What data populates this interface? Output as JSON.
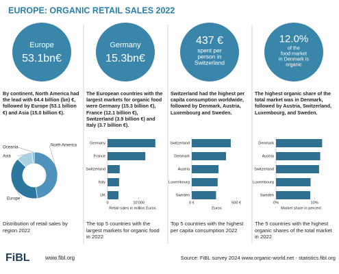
{
  "title": "EUROPE: ORGANIC RETAIL SALES 2022",
  "panels": [
    {
      "badge": [
        "Europe",
        "53.1bn€"
      ],
      "text": "By continent, North America had the lead with 64.4 billion (bn) €, followed by Europe (53.1 billion €) and Asia (15.0 billion €).",
      "caption": "Distribution of retail sales by region 2022"
    },
    {
      "badge": [
        "Germany",
        "15.3bn€"
      ],
      "text": "The European countries with the largest markets for organic food were Germany (15.3 billion €), France (12.1 billion €), Switzerland (3.9 billion €) and Italy (3.7 billion €).",
      "caption": "The top 5 countries with the largest markets for organic food in 2022"
    },
    {
      "badge": [
        "437 €",
        "spent per",
        "person in",
        "Switzerland"
      ],
      "text": "Switzerland had the highest per capita consumption worldwide, followed by Denmark, Austria, Luxembourg and Sweden.",
      "caption": "Top 5 countries with the highest per capita consumption 2022"
    },
    {
      "badge": [
        "12.0%",
        "of the",
        "food market",
        "in Denmark is",
        "organic"
      ],
      "text": "The highest organic share of the total market was in Denmark, followed by Austria, Switzerland, Luxembourg, and Sweden.",
      "caption": "The 5 countries with the highest organic shares of the total market in 2022"
    }
  ],
  "chart_data": [
    {
      "type": "donut",
      "categories": [
        "North America",
        "Europe",
        "Asia",
        "Oceania"
      ],
      "values": [
        64.4,
        53.1,
        15.0,
        2.0
      ],
      "colors": [
        "#4f93bd",
        "#2a77a0",
        "#a9d1e2",
        "#74b3cf"
      ]
    },
    {
      "type": "hbar",
      "categories": [
        "Germany",
        "France",
        "Switzerland",
        "Italy",
        "UK"
      ],
      "values": [
        15300,
        12100,
        3900,
        3700,
        3500
      ],
      "xlim": [
        0,
        16000
      ],
      "xticks": [
        0,
        {
          "value": 10000,
          "label": "10'000"
        }
      ],
      "xlabel": "Retail sales in million Euros",
      "color": "#2f6f8f"
    },
    {
      "type": "hbar",
      "categories": [
        "Switzerland",
        "Denmark",
        "Austria",
        "Luxembourg",
        "Sweden"
      ],
      "values": [
        437,
        384,
        300,
        290,
        272
      ],
      "xlim": [
        0,
        560
      ],
      "xticks": [
        {
          "value": 0,
          "label": "0 €"
        },
        {
          "value": 500,
          "label": "500 €"
        }
      ],
      "xlabel": "Euros",
      "color": "#2f6f8f"
    },
    {
      "type": "hbar",
      "categories": [
        "Denmark",
        "Austria",
        "Switzerland",
        "Luxembourg",
        "Sweden"
      ],
      "values": [
        12.0,
        11.5,
        11.2,
        9.0,
        8.9
      ],
      "xlim": [
        0,
        13
      ],
      "xticks": [
        {
          "value": 0,
          "label": "0%"
        },
        {
          "value": 10,
          "label": "10%"
        }
      ],
      "xlabel": "Market share in percent",
      "color": "#2f6f8f"
    }
  ],
  "footer": {
    "logo": "FiBL",
    "url": "www.fibl.org",
    "source": "Source: FiBL survey 2024 www.organic-world.net - statistics.fibl.org"
  }
}
